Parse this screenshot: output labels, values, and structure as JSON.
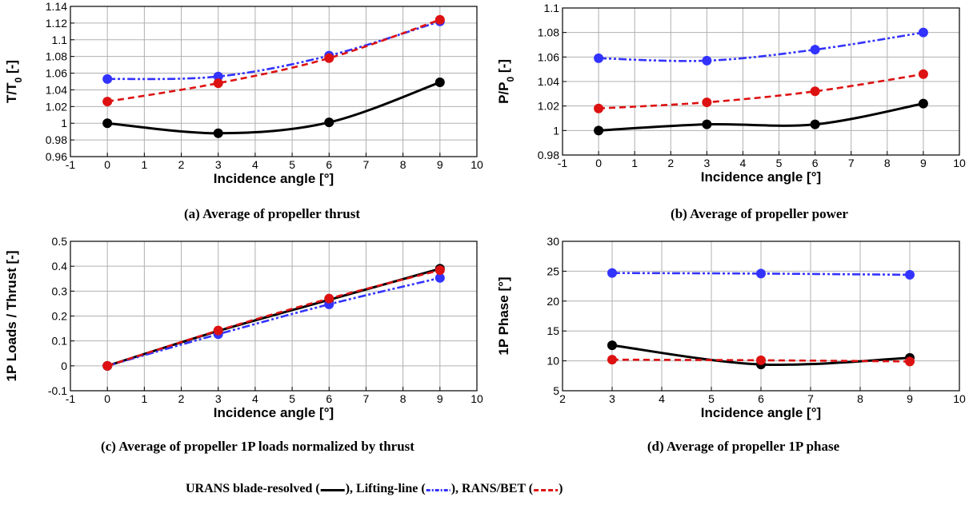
{
  "chart_data": [
    {
      "id": "a",
      "type": "line",
      "caption": "(a) Average of propeller thrust",
      "xlabel": "Incidence angle [°]",
      "ylabel": "T/T0 [-]",
      "ylabel_main": "T/T",
      "ylabel_sub": "0",
      "ylabel_tail": " [-]",
      "xlim": [
        -1,
        10
      ],
      "ylim": [
        0.96,
        1.14
      ],
      "xticks": [
        "-1",
        "0",
        "1",
        "2",
        "3",
        "4",
        "5",
        "6",
        "7",
        "8",
        "9",
        "10"
      ],
      "yticks": [
        "0.96",
        "0.98",
        "1",
        "1.02",
        "1.04",
        "1.06",
        "1.08",
        "1.1",
        "1.12",
        "1.14"
      ],
      "grid": true,
      "series": [
        {
          "style": "urans",
          "x": [
            0,
            3,
            6,
            9
          ],
          "y": [
            1.0,
            0.988,
            1.001,
            1.049
          ]
        },
        {
          "style": "lifting",
          "x": [
            0,
            3,
            6,
            9
          ],
          "y": [
            1.053,
            1.056,
            1.081,
            1.122
          ]
        },
        {
          "style": "rans",
          "x": [
            0,
            3,
            6,
            9
          ],
          "y": [
            1.026,
            1.048,
            1.078,
            1.124
          ]
        }
      ]
    },
    {
      "id": "b",
      "type": "line",
      "caption": "(b) Average of propeller power",
      "xlabel": "Incidence angle [°]",
      "ylabel": "P/P0 [-]",
      "ylabel_main": "P/P",
      "ylabel_sub": "0",
      "ylabel_tail": " [-]",
      "xlim": [
        -1,
        10
      ],
      "ylim": [
        0.98,
        1.1
      ],
      "xticks": [
        "-1",
        "0",
        "1",
        "2",
        "3",
        "4",
        "5",
        "6",
        "7",
        "8",
        "9",
        "10"
      ],
      "yticks": [
        "0.98",
        "1",
        "1.02",
        "1.04",
        "1.06",
        "1.08",
        "1.1"
      ],
      "grid": true,
      "series": [
        {
          "style": "urans",
          "x": [
            0,
            3,
            6,
            9
          ],
          "y": [
            1.0,
            1.005,
            1.005,
            1.022
          ]
        },
        {
          "style": "lifting",
          "x": [
            0,
            3,
            6,
            9
          ],
          "y": [
            1.059,
            1.057,
            1.066,
            1.08
          ]
        },
        {
          "style": "rans",
          "x": [
            0,
            3,
            6,
            9
          ],
          "y": [
            1.018,
            1.023,
            1.032,
            1.046
          ]
        }
      ]
    },
    {
      "id": "c",
      "type": "line",
      "caption": "(c) Average of propeller 1P loads normalized by thrust",
      "xlabel": "Incidence angle [°]",
      "ylabel": "1P Loads / Thrust [-]",
      "ylabel_main": "1P Loads / Thrust [-]",
      "ylabel_sub": "",
      "ylabel_tail": "",
      "xlim": [
        -1,
        10
      ],
      "ylim": [
        -0.1,
        0.5
      ],
      "xticks": [
        "-1",
        "0",
        "1",
        "2",
        "3",
        "4",
        "5",
        "6",
        "7",
        "8",
        "9",
        "10"
      ],
      "yticks": [
        "-0.1",
        "0",
        "0.1",
        "0.2",
        "0.3",
        "0.4",
        "0.5"
      ],
      "grid": true,
      "series": [
        {
          "style": "urans",
          "x": [
            0,
            3,
            6,
            9
          ],
          "y": [
            0.0,
            0.14,
            0.265,
            0.39
          ]
        },
        {
          "style": "lifting",
          "x": [
            0,
            3,
            6,
            9
          ],
          "y": [
            0.0,
            0.127,
            0.247,
            0.353
          ]
        },
        {
          "style": "rans",
          "x": [
            0,
            3,
            6,
            9
          ],
          "y": [
            0.0,
            0.142,
            0.27,
            0.384
          ]
        }
      ]
    },
    {
      "id": "d",
      "type": "line",
      "caption": "(d) Average of propeller 1P phase",
      "xlabel": "Incidence angle [°]",
      "ylabel": "1P Phase [°]",
      "ylabel_main": "1P Phase [°]",
      "ylabel_sub": "",
      "ylabel_tail": "",
      "xlim": [
        2,
        10
      ],
      "ylim": [
        5,
        30
      ],
      "xticks": [
        "2",
        "3",
        "4",
        "5",
        "6",
        "7",
        "8",
        "9",
        "10"
      ],
      "yticks": [
        "5",
        "10",
        "15",
        "20",
        "25",
        "30"
      ],
      "grid": true,
      "series": [
        {
          "style": "urans",
          "x": [
            3,
            6,
            9
          ],
          "y": [
            12.6,
            9.4,
            10.5
          ]
        },
        {
          "style": "lifting",
          "x": [
            3,
            6,
            9
          ],
          "y": [
            24.7,
            24.6,
            24.4
          ]
        },
        {
          "style": "rans",
          "x": [
            3,
            6,
            9
          ],
          "y": [
            10.2,
            10.1,
            9.9
          ]
        }
      ]
    }
  ],
  "legend": {
    "urans_label": "URANS blade-resolved (",
    "lifting_label": "), Lifting-line (",
    "rans_label": "), RANS/BET (",
    "end_label": ")"
  },
  "colors": {
    "urans": "#000000",
    "lifting": "#3333ff",
    "rans": "#dd1111",
    "grid": "#b0b0b0"
  }
}
